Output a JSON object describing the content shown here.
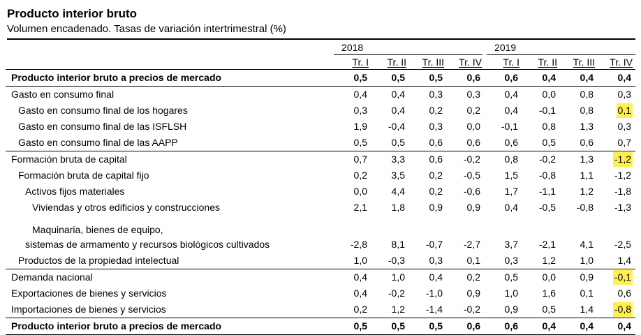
{
  "title": "Producto interior bruto",
  "subtitle": "Volumen encadenado. Tasas de variación intertrimestral (%)",
  "highlight_color": "#fff052",
  "table": {
    "year_groups": [
      {
        "label": "2018",
        "quarters": [
          "Tr. I",
          "Tr. II",
          "Tr. III",
          "Tr. IV"
        ]
      },
      {
        "label": "2019",
        "quarters": [
          "Tr. I",
          "Tr. II",
          "Tr. III",
          "Tr. IV"
        ]
      }
    ],
    "rows": [
      {
        "label_lines": [
          "Producto interior bruto a precios de mercado"
        ],
        "indents": [
          0
        ],
        "bold": true,
        "sep_after": "medium",
        "values": [
          "0,5",
          "0,5",
          "0,5",
          "0,6",
          "0,6",
          "0,4",
          "0,4",
          "0,4"
        ],
        "highlighted_cols": []
      },
      {
        "label_lines": [
          "Gasto en consumo final"
        ],
        "indents": [
          0
        ],
        "bold": false,
        "sep_after": "none",
        "values": [
          "0,4",
          "0,4",
          "0,3",
          "0,3",
          "0,4",
          "0,0",
          "0,8",
          "0,3"
        ],
        "highlighted_cols": []
      },
      {
        "label_lines": [
          "Gasto en consumo final de los hogares"
        ],
        "indents": [
          1
        ],
        "bold": false,
        "sep_after": "none",
        "values": [
          "0,3",
          "0,4",
          "0,2",
          "0,2",
          "0,4",
          "-0,1",
          "0,8",
          "0,1"
        ],
        "highlighted_cols": [
          7
        ]
      },
      {
        "label_lines": [
          "Gasto en consumo final de las ISFLSH"
        ],
        "indents": [
          1
        ],
        "bold": false,
        "sep_after": "none",
        "values": [
          "1,9",
          "-0,4",
          "0,3",
          "0,0",
          "-0,1",
          "0,8",
          "1,3",
          "0,3"
        ],
        "highlighted_cols": []
      },
      {
        "label_lines": [
          "Gasto en consumo final de las AAPP"
        ],
        "indents": [
          1
        ],
        "bold": false,
        "sep_after": "medium",
        "values": [
          "0,5",
          "0,5",
          "0,6",
          "0,6",
          "0,6",
          "0,5",
          "0,6",
          "0,7"
        ],
        "highlighted_cols": []
      },
      {
        "label_lines": [
          "Formación bruta de capital"
        ],
        "indents": [
          0
        ],
        "bold": false,
        "sep_after": "none",
        "values": [
          "0,7",
          "3,3",
          "0,6",
          "-0,2",
          "0,8",
          "-0,2",
          "1,3",
          "-1,2"
        ],
        "highlighted_cols": [
          7
        ]
      },
      {
        "label_lines": [
          "Formación bruta de capital fijo"
        ],
        "indents": [
          1
        ],
        "bold": false,
        "sep_after": "none",
        "values": [
          "0,2",
          "3,5",
          "0,2",
          "-0,5",
          "1,5",
          "-0,8",
          "1,1",
          "-1,2"
        ],
        "highlighted_cols": []
      },
      {
        "label_lines": [
          "Activos fijos materiales"
        ],
        "indents": [
          2
        ],
        "bold": false,
        "sep_after": "none",
        "values": [
          "0,0",
          "4,4",
          "0,2",
          "-0,6",
          "1,7",
          "-1,1",
          "1,2",
          "-1,8"
        ],
        "highlighted_cols": []
      },
      {
        "label_lines": [
          "Viviendas y otros edificios y construcciones"
        ],
        "indents": [
          3
        ],
        "bold": false,
        "sep_after": "none",
        "values": [
          "2,1",
          "1,8",
          "0,9",
          "0,9",
          "0,4",
          "-0,5",
          "-0,8",
          "-1,3"
        ],
        "highlighted_cols": []
      },
      {
        "label_lines": [
          "Maquinaria, bienes de equipo,",
          "sistemas de armamento y recursos biológicos cultivados"
        ],
        "indents": [
          3,
          2
        ],
        "bold": false,
        "sep_after": "none",
        "tall": true,
        "values": [
          "-2,8",
          "8,1",
          "-0,7",
          "-2,7",
          "3,7",
          "-2,1",
          "4,1",
          "-2,5"
        ],
        "highlighted_cols": []
      },
      {
        "label_lines": [
          "Productos de la propiedad intelectual"
        ],
        "indents": [
          1
        ],
        "bold": false,
        "sep_after": "medium",
        "values": [
          "1,0",
          "-0,3",
          "0,3",
          "0,1",
          "0,3",
          "1,2",
          "1,0",
          "1,4"
        ],
        "highlighted_cols": []
      },
      {
        "label_lines": [
          "Demanda nacional"
        ],
        "indents": [
          0
        ],
        "bold": false,
        "sep_after": "none",
        "values": [
          "0,4",
          "1,0",
          "0,4",
          "0,2",
          "0,5",
          "0,0",
          "0,9",
          "-0,1"
        ],
        "highlighted_cols": [
          7
        ]
      },
      {
        "label_lines": [
          "Exportaciones de bienes y servicios"
        ],
        "indents": [
          0
        ],
        "bold": false,
        "sep_after": "none",
        "values": [
          "0,4",
          "-0,2",
          "-1,0",
          "0,9",
          "1,0",
          "1,6",
          "0,1",
          "0,6"
        ],
        "highlighted_cols": []
      },
      {
        "label_lines": [
          "Importaciones de bienes y servicios"
        ],
        "indents": [
          0
        ],
        "bold": false,
        "sep_after": "medium",
        "values": [
          "0,2",
          "1,2",
          "-1,4",
          "-0,2",
          "0,9",
          "0,5",
          "1,4",
          "-0,8"
        ],
        "highlighted_cols": [
          7
        ]
      },
      {
        "label_lines": [
          "Producto interior bruto a precios de mercado"
        ],
        "indents": [
          0
        ],
        "bold": true,
        "sep_after": "thick",
        "values": [
          "0,5",
          "0,5",
          "0,5",
          "0,6",
          "0,6",
          "0,4",
          "0,4",
          "0,4"
        ],
        "highlighted_cols": []
      }
    ]
  }
}
